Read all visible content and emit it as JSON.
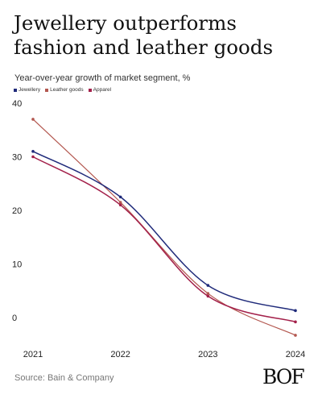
{
  "header": {
    "title": "Jewellery outperforms fashion and leather goods",
    "subtitle": "Year-over-year growth of market segment, %"
  },
  "footer": {
    "source": "Source: Bain & Company",
    "logo": "BOF"
  },
  "chart_data": {
    "type": "line",
    "x": [
      "2021",
      "2022",
      "2023",
      "2024"
    ],
    "ylim": [
      -5,
      40
    ],
    "yticks": [
      0,
      10,
      20,
      30,
      40
    ],
    "grid": false,
    "legend_position": "top-left",
    "series": [
      {
        "name": "Jewellery",
        "color": "#1f2a7a",
        "values": [
          31,
          22.5,
          6,
          1.3
        ]
      },
      {
        "name": "Leather goods",
        "color": "#b3574f",
        "values": [
          37,
          21.5,
          4.5,
          -3.3
        ]
      },
      {
        "name": "Apparel",
        "color": "#a3204a",
        "values": [
          30,
          21,
          4,
          -0.8
        ]
      }
    ]
  }
}
